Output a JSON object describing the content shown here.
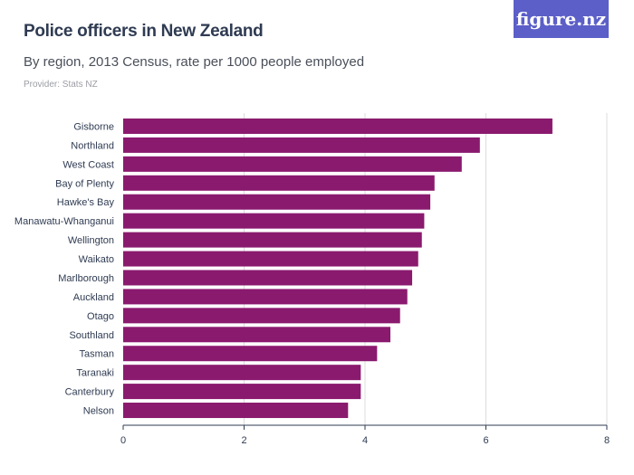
{
  "header": {
    "title": "Police officers in New Zealand",
    "subtitle": "By region, 2013 Census, rate per 1000 people employed",
    "provider": "Provider: Stats NZ",
    "logo": "figure.nz"
  },
  "colors": {
    "bar": "#8a1a6e",
    "grid": "#dcdcdc",
    "logo_bg": "#5b5fc7"
  },
  "chart_data": {
    "type": "bar",
    "orientation": "horizontal",
    "title": "Police officers in New Zealand",
    "subtitle": "By region, 2013 Census, rate per 1000 people employed",
    "categories": [
      "Gisborne",
      "Northland",
      "West Coast",
      "Bay of Plenty",
      "Hawke's Bay",
      "Manawatu-Whanganui",
      "Wellington",
      "Waikato",
      "Marlborough",
      "Auckland",
      "Otago",
      "Southland",
      "Tasman",
      "Taranaki",
      "Canterbury",
      "Nelson"
    ],
    "values": [
      7.1,
      5.9,
      5.6,
      5.15,
      5.08,
      4.98,
      4.94,
      4.88,
      4.78,
      4.7,
      4.58,
      4.42,
      4.2,
      3.93,
      3.93,
      3.72
    ],
    "xlim": [
      0,
      8
    ],
    "xticks": [
      0,
      2,
      4,
      6,
      8
    ],
    "grid": true
  }
}
